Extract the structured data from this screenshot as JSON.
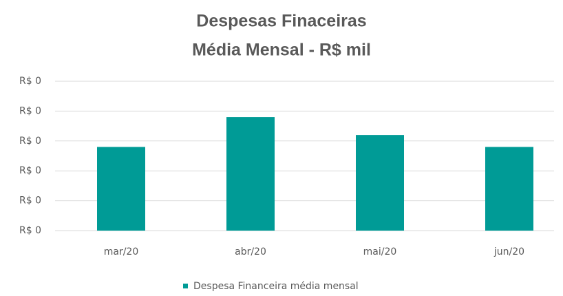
{
  "chart_data": {
    "type": "bar",
    "title": [
      "Despesas Finaceiras",
      "Média Mensal - R$ mil"
    ],
    "categories": [
      "mar/20",
      "abr/20",
      "mai/20",
      "jun/20"
    ],
    "series": [
      {
        "name": "Despesa Financeira média mensal",
        "color": "#009b96",
        "values": [
          0.28,
          0.38,
          0.32,
          0.28
        ]
      }
    ],
    "ylim": [
      0,
      0.5
    ],
    "yticks": [
      {
        "value": 0,
        "label": "R$ 0"
      },
      {
        "value": 0.1,
        "label": "R$ 0"
      },
      {
        "value": 0.2,
        "label": "R$ 0"
      },
      {
        "value": 0.3,
        "label": "R$ 0"
      },
      {
        "value": 0.4,
        "label": "R$ 0"
      },
      {
        "value": 0.5,
        "label": "R$ 0"
      }
    ],
    "grid": true,
    "legend": "bottom"
  }
}
